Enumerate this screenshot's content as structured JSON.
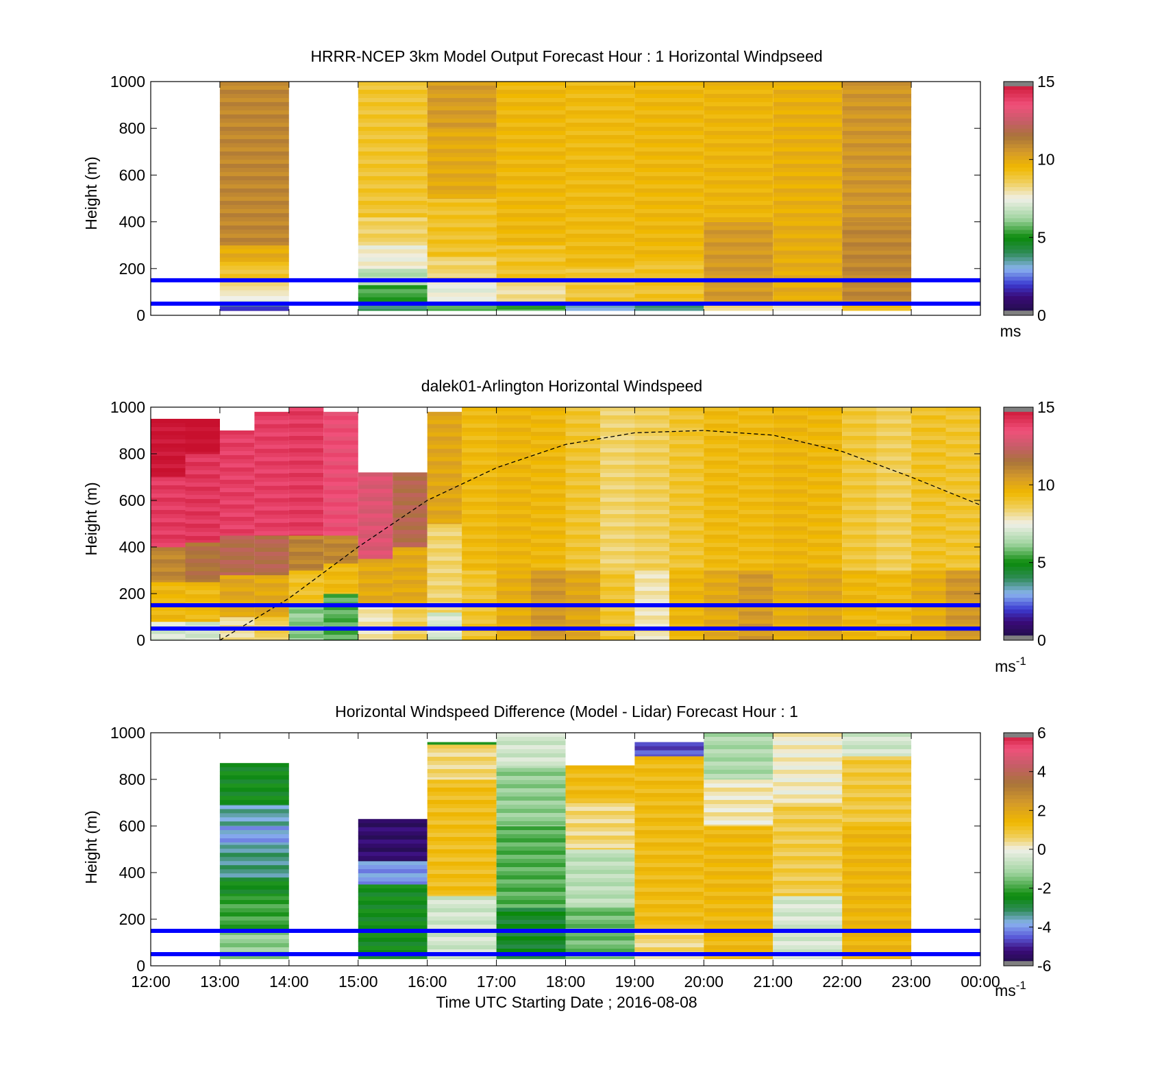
{
  "chart_data": [
    {
      "type": "heatmap",
      "title": "HRRR-NCEP 3km Model Output   Forecast Hour : 1 Horizontal Windpseed",
      "ylabel": "Height (m)",
      "ylim": [
        0,
        1000
      ],
      "yticks": [
        "0",
        "200",
        "400",
        "600",
        "800",
        "1000"
      ],
      "colorbar": {
        "unit": "ms",
        "range": [
          0,
          15
        ],
        "ticks": [
          "0",
          "5",
          "10",
          "15"
        ]
      },
      "reference_lines_m": [
        50,
        150
      ],
      "columns": [
        {
          "hour": 13,
          "top": 1000,
          "profile": [
            [
              20,
              40,
              2
            ],
            [
              40,
              60,
              6
            ],
            [
              60,
              100,
              7.5
            ],
            [
              100,
              160,
              8
            ],
            [
              160,
              230,
              9
            ],
            [
              230,
              300,
              10
            ],
            [
              300,
              1000,
              11
            ]
          ]
        },
        {
          "hour": 15,
          "top": 1000,
          "profile": [
            [
              20,
              60,
              4
            ],
            [
              60,
              130,
              5.5
            ],
            [
              130,
              200,
              6.5
            ],
            [
              200,
              300,
              7.5
            ],
            [
              300,
              420,
              8.5
            ],
            [
              420,
              1000,
              9
            ]
          ]
        },
        {
          "hour": 16,
          "top": 1000,
          "profile": [
            [
              20,
              60,
              5.5
            ],
            [
              60,
              150,
              7.5
            ],
            [
              150,
              250,
              8.5
            ],
            [
              250,
              500,
              9
            ],
            [
              500,
              800,
              10
            ],
            [
              800,
              1000,
              10.5
            ]
          ]
        },
        {
          "hour": 17,
          "top": 1000,
          "profile": [
            [
              20,
              60,
              5.5
            ],
            [
              60,
              160,
              8
            ],
            [
              160,
              300,
              9
            ],
            [
              300,
              1000,
              9.5
            ]
          ]
        },
        {
          "hour": 18,
          "top": 1000,
          "profile": [
            [
              20,
              50,
              3
            ],
            [
              50,
              200,
              9
            ],
            [
              200,
              1000,
              9.5
            ]
          ]
        },
        {
          "hour": 19,
          "top": 1000,
          "profile": [
            [
              20,
              50,
              4
            ],
            [
              50,
              250,
              9
            ],
            [
              250,
              1000,
              9.5
            ]
          ]
        },
        {
          "hour": 20,
          "top": 1000,
          "profile": [
            [
              20,
              50,
              8
            ],
            [
              50,
              400,
              10.5
            ],
            [
              400,
              1000,
              9.5
            ]
          ]
        },
        {
          "hour": 21,
          "top": 1000,
          "profile": [
            [
              20,
              50,
              8
            ],
            [
              50,
              400,
              10
            ],
            [
              400,
              1000,
              9.8
            ]
          ]
        },
        {
          "hour": 22,
          "top": 1000,
          "profile": [
            [
              20,
              50,
              9
            ],
            [
              50,
              400,
              11
            ],
            [
              400,
              1000,
              10.5
            ]
          ]
        }
      ]
    },
    {
      "type": "heatmap",
      "title": "dalek01-Arlington  Horizontal Windspeed",
      "ylabel": "Height (m)",
      "ylim": [
        0,
        1000
      ],
      "yticks": [
        "0",
        "200",
        "400",
        "600",
        "800",
        "1000"
      ],
      "colorbar": {
        "unit": "ms",
        "unit_exp": "-1",
        "range": [
          0,
          15
        ],
        "ticks": [
          "0",
          "5",
          "10",
          "15"
        ]
      },
      "reference_lines_m": [
        50,
        150
      ],
      "boundary_curve": {
        "style": "dashed",
        "points": [
          [
            13,
            0
          ],
          [
            14,
            180
          ],
          [
            15,
            400
          ],
          [
            16,
            600
          ],
          [
            17,
            740
          ],
          [
            18,
            840
          ],
          [
            19,
            890
          ],
          [
            20,
            900
          ],
          [
            21,
            880
          ],
          [
            22,
            810
          ],
          [
            23,
            700
          ],
          [
            24,
            580
          ]
        ]
      },
      "columns": [
        {
          "hour": 12.0,
          "top": 950,
          "profile": [
            [
              0,
              80,
              7
            ],
            [
              80,
              250,
              9.5
            ],
            [
              250,
              400,
              11
            ],
            [
              400,
              700,
              14
            ],
            [
              700,
              950,
              15
            ]
          ]
        },
        {
          "hour": 12.5,
          "top": 950,
          "profile": [
            [
              0,
              80,
              7
            ],
            [
              80,
              250,
              9.5
            ],
            [
              250,
              420,
              11.5
            ],
            [
              420,
              800,
              14
            ],
            [
              800,
              950,
              15
            ]
          ]
        },
        {
          "hour": 13.0,
          "top": 900,
          "profile": [
            [
              0,
              100,
              8
            ],
            [
              100,
              280,
              10
            ],
            [
              280,
              450,
              12
            ],
            [
              450,
              900,
              14
            ]
          ]
        },
        {
          "hour": 13.5,
          "top": 980,
          "profile": [
            [
              0,
              100,
              8.5
            ],
            [
              100,
              280,
              10
            ],
            [
              280,
              450,
              12
            ],
            [
              450,
              980,
              14
            ]
          ]
        },
        {
          "hour": 14.0,
          "top": 1000,
          "profile": [
            [
              0,
              150,
              6
            ],
            [
              150,
              300,
              9
            ],
            [
              300,
              450,
              11
            ],
            [
              450,
              1000,
              14
            ]
          ]
        },
        {
          "hour": 14.5,
          "top": 1000,
          "profile": [
            [
              0,
              200,
              5.5
            ],
            [
              200,
              330,
              9.5
            ],
            [
              330,
              450,
              11
            ],
            [
              450,
              980,
              13.5
            ]
          ]
        },
        {
          "hour": 15.0,
          "top": 720,
          "profile": [
            [
              0,
              150,
              8
            ],
            [
              150,
              350,
              10
            ],
            [
              350,
              720,
              13
            ]
          ]
        },
        {
          "hour": 15.5,
          "top": 720,
          "profile": [
            [
              0,
              150,
              8.5
            ],
            [
              150,
              400,
              10
            ],
            [
              400,
              720,
              12
            ]
          ]
        },
        {
          "hour": 16.0,
          "top": 980,
          "profile": [
            [
              0,
              120,
              7
            ],
            [
              120,
              500,
              8.5
            ],
            [
              500,
              980,
              10
            ]
          ]
        },
        {
          "hour": 16.5,
          "top": 1000,
          "profile": [
            [
              0,
              300,
              9
            ],
            [
              300,
              1000,
              9.5
            ]
          ]
        },
        {
          "hour": 17.0,
          "top": 1000,
          "profile": [
            [
              0,
              300,
              10
            ],
            [
              300,
              1000,
              9.5
            ]
          ]
        },
        {
          "hour": 17.5,
          "top": 1000,
          "profile": [
            [
              0,
              300,
              10.5
            ],
            [
              300,
              1000,
              9.5
            ]
          ]
        },
        {
          "hour": 18.0,
          "top": 1000,
          "profile": [
            [
              0,
              300,
              10
            ],
            [
              300,
              1000,
              9
            ]
          ]
        },
        {
          "hour": 18.5,
          "top": 1000,
          "profile": [
            [
              0,
              300,
              9
            ],
            [
              300,
              1000,
              8.5
            ]
          ]
        },
        {
          "hour": 19.0,
          "top": 1000,
          "profile": [
            [
              0,
              300,
              8
            ],
            [
              300,
              1000,
              8.5
            ]
          ]
        },
        {
          "hour": 19.5,
          "top": 1000,
          "profile": [
            [
              0,
              300,
              9.5
            ],
            [
              300,
              1000,
              9
            ]
          ]
        },
        {
          "hour": 20.0,
          "top": 1000,
          "profile": [
            [
              0,
              300,
              10
            ],
            [
              300,
              1000,
              9.5
            ]
          ]
        },
        {
          "hour": 20.5,
          "top": 1000,
          "profile": [
            [
              0,
              300,
              10.5
            ],
            [
              300,
              1000,
              9.5
            ]
          ]
        },
        {
          "hour": 21.0,
          "top": 1000,
          "profile": [
            [
              0,
              300,
              10
            ],
            [
              300,
              1000,
              9.5
            ]
          ]
        },
        {
          "hour": 21.5,
          "top": 1000,
          "profile": [
            [
              0,
              300,
              10
            ],
            [
              300,
              1000,
              9.5
            ]
          ]
        },
        {
          "hour": 22.0,
          "top": 1000,
          "profile": [
            [
              0,
              300,
              9.5
            ],
            [
              300,
              1000,
              9
            ]
          ]
        },
        {
          "hour": 22.5,
          "top": 1000,
          "profile": [
            [
              0,
              300,
              9.5
            ],
            [
              300,
              1000,
              8.5
            ]
          ]
        },
        {
          "hour": 23.0,
          "top": 1000,
          "profile": [
            [
              0,
              300,
              10
            ],
            [
              300,
              1000,
              9
            ]
          ]
        },
        {
          "hour": 23.5,
          "top": 1000,
          "profile": [
            [
              0,
              300,
              10.5
            ],
            [
              300,
              1000,
              9
            ]
          ]
        }
      ]
    },
    {
      "type": "heatmap",
      "title": "Horizontal Windspeed Difference (Model - Lidar) Forecast Hour : 1",
      "ylabel": "Height (m)",
      "xlabel": "Time UTC  Starting Date ; 2016-08-08",
      "ylim": [
        0,
        1000
      ],
      "yticks": [
        "0",
        "200",
        "400",
        "600",
        "800",
        "1000"
      ],
      "xticks": [
        "12:00",
        "13:00",
        "14:00",
        "15:00",
        "16:00",
        "17:00",
        "18:00",
        "19:00",
        "20:00",
        "21:00",
        "22:00",
        "23:00",
        "00:00"
      ],
      "colorbar": {
        "unit": "ms",
        "unit_exp": "-1",
        "range": [
          -6,
          6
        ],
        "ticks": [
          "-6",
          "-4",
          "-2",
          "0",
          "2",
          "4",
          "6"
        ]
      },
      "reference_lines_m": [
        50,
        150
      ],
      "columns": [
        {
          "hour": 13,
          "top": 870,
          "profile": [
            [
              30,
              150,
              -1.3
            ],
            [
              150,
              300,
              -2.0
            ],
            [
              300,
              380,
              -2.6
            ],
            [
              380,
              520,
              -3.3
            ],
            [
              520,
              600,
              -3.9
            ],
            [
              600,
              690,
              -3.4
            ],
            [
              690,
              870,
              -2.6
            ]
          ]
        },
        {
          "hour": 15,
          "top": 630,
          "profile": [
            [
              30,
              350,
              -2.6
            ],
            [
              350,
              450,
              -4.0
            ],
            [
              450,
              630,
              -5.4
            ]
          ]
        },
        {
          "hour": 16,
          "top": 960,
          "profile": [
            [
              30,
              300,
              -0.4
            ],
            [
              300,
              800,
              1.2
            ],
            [
              800,
              950,
              0.5
            ],
            [
              950,
              960,
              -2.5
            ]
          ]
        },
        {
          "hour": 17,
          "top": 1000,
          "profile": [
            [
              30,
              250,
              -2.6
            ],
            [
              250,
              600,
              -1.8
            ],
            [
              600,
              850,
              -1.2
            ],
            [
              850,
              1000,
              -0.4
            ]
          ]
        },
        {
          "hour": 18,
          "top": 860,
          "profile": [
            [
              30,
              250,
              -1.7
            ],
            [
              250,
              500,
              -0.8
            ],
            [
              500,
              700,
              0.4
            ],
            [
              700,
              860,
              1.2
            ]
          ]
        },
        {
          "hour": 19,
          "top": 960,
          "profile": [
            [
              30,
              150,
              0.5
            ],
            [
              150,
              900,
              1.3
            ],
            [
              900,
              960,
              -4.5
            ]
          ]
        },
        {
          "hour": 20,
          "top": 1000,
          "profile": [
            [
              30,
              600,
              1.3
            ],
            [
              600,
              800,
              0.3
            ],
            [
              800,
              1000,
              -1.0
            ]
          ]
        },
        {
          "hour": 21,
          "top": 1000,
          "profile": [
            [
              30,
              300,
              -0.4
            ],
            [
              300,
              700,
              0.9
            ],
            [
              700,
              1000,
              0.2
            ]
          ]
        },
        {
          "hour": 22,
          "top": 1000,
          "profile": [
            [
              30,
              600,
              1.4
            ],
            [
              600,
              900,
              0.8
            ],
            [
              900,
              1000,
              -0.5
            ]
          ]
        }
      ]
    }
  ]
}
